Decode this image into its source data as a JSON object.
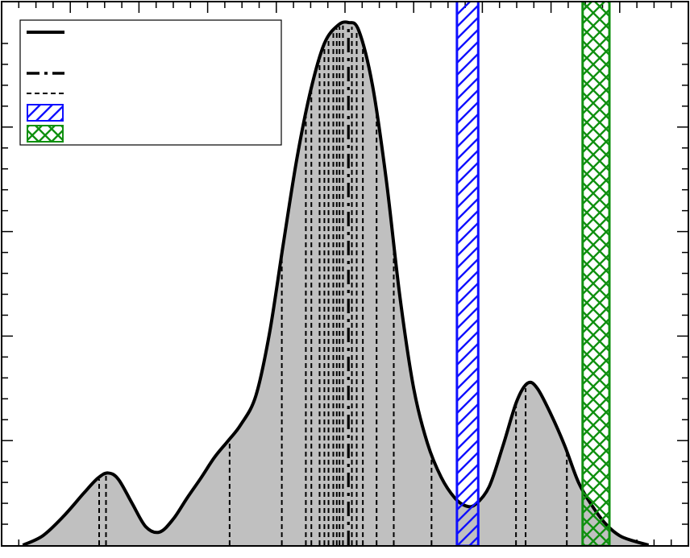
{
  "chart_data": {
    "type": "area",
    "title": "",
    "xlabel": "",
    "ylabel": "",
    "xlim": [
      0,
      100
    ],
    "ylim": [
      0,
      1.0
    ],
    "grid": false,
    "legend": {
      "placement": "top-left",
      "entries": [
        {
          "style": "solid",
          "label": ""
        },
        {
          "style": "dash-dot",
          "label": ""
        },
        {
          "style": "dashed",
          "label": ""
        },
        {
          "style": "hatch-diagonal",
          "label": "",
          "color": "#1010ff"
        },
        {
          "style": "hatch-cross",
          "label": "",
          "color": "#109010"
        }
      ]
    },
    "density_curve": {
      "x": [
        3.1,
        6,
        9,
        12,
        14,
        15.5,
        17,
        19,
        21,
        23,
        25,
        27,
        29,
        31,
        33,
        34.8,
        37,
        39,
        41,
        43,
        45,
        47,
        49,
        50.5,
        52,
        54,
        56,
        58,
        60,
        62,
        64,
        66,
        67.6,
        69,
        71,
        73,
        75,
        76.6,
        78,
        80,
        82,
        84,
        86,
        88,
        90,
        92,
        94.2
      ],
      "y": [
        0.0,
        0.018,
        0.055,
        0.1,
        0.128,
        0.138,
        0.126,
        0.08,
        0.035,
        0.025,
        0.05,
        0.09,
        0.128,
        0.168,
        0.2,
        0.23,
        0.285,
        0.405,
        0.575,
        0.74,
        0.87,
        0.96,
        0.995,
        1.0,
        0.985,
        0.88,
        0.7,
        0.475,
        0.3,
        0.195,
        0.13,
        0.09,
        0.075,
        0.078,
        0.112,
        0.19,
        0.275,
        0.31,
        0.3,
        0.25,
        0.19,
        0.12,
        0.075,
        0.04,
        0.018,
        0.008,
        0.0
      ]
    },
    "median_x": 50.5,
    "quantile_lines_x": [
      14.2,
      15.2,
      33.2,
      40.8,
      44.3,
      45.1,
      46.3,
      47.0,
      47.6,
      48.3,
      48.8,
      49.2,
      49.7,
      51.0,
      51.7,
      52.6,
      54.6,
      57.1,
      62.6,
      74.9,
      76.3,
      82.3
    ],
    "bands": [
      {
        "name": "",
        "x_range": [
          66.3,
          69.4
        ],
        "pattern": "diagonal",
        "color": "#1010ff"
      },
      {
        "name": "",
        "x_range": [
          84.6,
          88.5
        ],
        "pattern": "cross",
        "color": "#109010"
      }
    ],
    "fill_color": "#c0c0c0",
    "line_color": "#000000"
  }
}
